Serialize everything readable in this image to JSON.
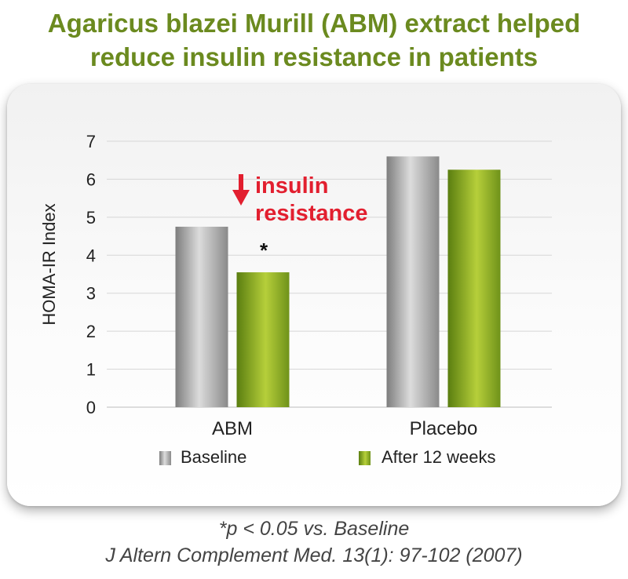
{
  "chart_data": {
    "type": "bar",
    "title": [
      "Agaricus blazei Murill (ABM) extract helped",
      "reduce insulin resistance in patients"
    ],
    "ylabel": "HOMA-IR Index",
    "xlabel": "",
    "categories": [
      "ABM",
      "Placebo"
    ],
    "series": [
      {
        "name": "Baseline",
        "values": [
          4.75,
          6.6
        ],
        "color": "#9a9a9a"
      },
      {
        "name": "After 12 weeks",
        "values": [
          3.55,
          6.25
        ],
        "color": "#7a9e1c"
      }
    ],
    "ylim": [
      0,
      7
    ],
    "yticks": [
      0,
      1,
      2,
      3,
      4,
      5,
      6,
      7
    ],
    "grid": true,
    "legend": "bottom",
    "annotations": {
      "significance_mark": "*",
      "callout_line1": "insulin",
      "callout_line2": "resistance",
      "callout_color": "#e21f2f",
      "callout_arrow": "down-arrow"
    }
  },
  "footnotes": {
    "significance": "*p < 0.05 vs. Baseline",
    "citation": "J Altern Complement Med. 13(1): 97-102 (2007)"
  },
  "colors": {
    "title": "#6b8a1f",
    "accent_red": "#e21f2f"
  }
}
